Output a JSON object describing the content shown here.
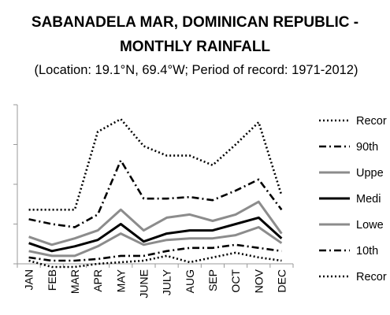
{
  "chart_data": {
    "type": "line",
    "title_lines": [
      "SABANADELA MAR, DOMINICAN REPUBLIC -",
      "MONTHLY RAINFALL"
    ],
    "subtitle": "(Location: 19.1°N, 69.4°W; Period of record: 1971-2012)",
    "categories": [
      "JAN",
      "FEB",
      "MAR",
      "APR",
      "MAY",
      "JUNE",
      "JULY",
      "AUG",
      "SEP",
      "OCT",
      "NOV",
      "DEC"
    ],
    "ylim": [
      0,
      100
    ],
    "grid": false,
    "legend_position": "right",
    "series": [
      {
        "name": "Recor",
        "style": "dotted",
        "color": "#000000",
        "values": [
          34,
          34,
          34,
          83,
          91,
          74,
          68,
          68,
          62,
          75,
          89,
          43
        ]
      },
      {
        "name": "90th",
        "style": "dashdot",
        "color": "#000000",
        "values": [
          28,
          25,
          23,
          31,
          65,
          41,
          41,
          42,
          40,
          46,
          53,
          34
        ]
      },
      {
        "name": "Uppe",
        "style": "solid",
        "color": "#8c8c8c",
        "values": [
          17,
          12,
          16,
          21,
          34,
          21,
          29,
          31,
          27,
          31,
          39,
          19
        ]
      },
      {
        "name": "Medi",
        "style": "solid",
        "color": "#000000",
        "values": [
          13,
          8,
          11,
          15,
          25,
          14,
          19,
          21,
          21,
          25,
          29,
          16
        ]
      },
      {
        "name": "Lowe",
        "style": "solid",
        "color": "#8c8c8c",
        "values": [
          8,
          5,
          5,
          11,
          19,
          12,
          15,
          16,
          16,
          18,
          23,
          13
        ]
      },
      {
        "name": "10th",
        "style": "dashdot",
        "color": "#000000",
        "values": [
          4,
          2,
          2,
          3,
          5,
          5,
          8,
          10,
          10,
          12,
          10,
          8
        ]
      },
      {
        "name": "Recor",
        "style": "dotted",
        "color": "#000000",
        "values": [
          2,
          -2,
          -2,
          0,
          1,
          2,
          5,
          1,
          4,
          7,
          4,
          2
        ]
      }
    ]
  }
}
